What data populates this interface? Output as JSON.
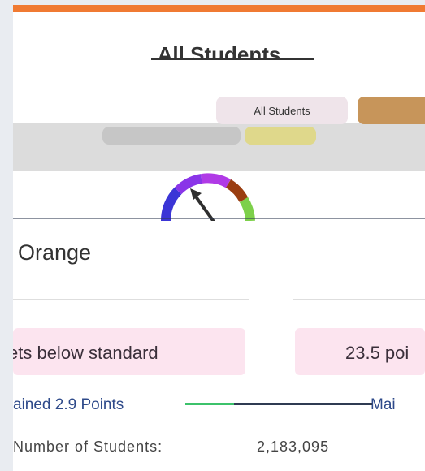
{
  "header": {
    "title": "All Students"
  },
  "filters": {
    "group_label": "All Students",
    "colors": {
      "top_bar": "#f07a32",
      "pill_all": "#efe4ea",
      "pill_tan": "#c7955a",
      "pill_gray": "#c6c6c6",
      "pill_yellow": "#dfd88b"
    }
  },
  "gauge": {
    "segments": [
      "#3b35d6",
      "#8a35e8",
      "#b03ae6",
      "#9a3e11",
      "#7dd04a"
    ],
    "needle_level_percent": 30
  },
  "status": {
    "label": "Orange"
  },
  "distance": {
    "left_text": "ets below standard",
    "right_text": "23.5 poi"
  },
  "change": {
    "left_text": "ained 2.9 Points",
    "right_text": "Mai"
  },
  "students": {
    "label": "Number of Students:",
    "count": "2,183,095"
  }
}
